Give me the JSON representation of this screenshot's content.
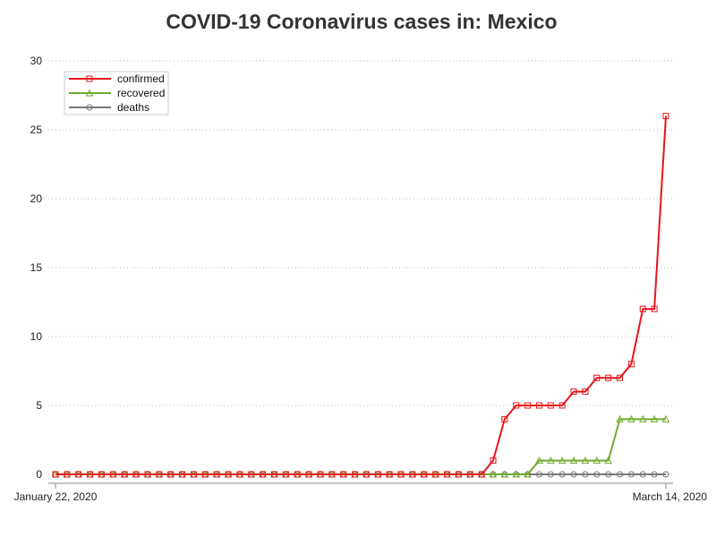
{
  "chart_data": {
    "type": "line",
    "title": "COVID-19 Coronavirus cases in: Mexico",
    "xlabel": "",
    "ylabel": "",
    "x_tick_labels": [
      "January 22, 2020",
      "March 14, 2020"
    ],
    "x_start": "2020-01-22",
    "x_end": "2020-03-14",
    "ylim": [
      0,
      30
    ],
    "y_ticks": [
      0,
      5,
      10,
      15,
      20,
      25,
      30
    ],
    "grid": "horizontal dotted",
    "legend_position": "top-left",
    "series": [
      {
        "name": "confirmed",
        "color": "#e8141b",
        "marker": "square",
        "values": [
          0,
          0,
          0,
          0,
          0,
          0,
          0,
          0,
          0,
          0,
          0,
          0,
          0,
          0,
          0,
          0,
          0,
          0,
          0,
          0,
          0,
          0,
          0,
          0,
          0,
          0,
          0,
          0,
          0,
          0,
          0,
          0,
          0,
          0,
          0,
          0,
          0,
          0,
          1,
          4,
          5,
          5,
          5,
          5,
          5,
          6,
          6,
          7,
          7,
          7,
          8,
          12,
          12,
          26
        ]
      },
      {
        "name": "recovered",
        "color": "#6fab2e",
        "marker": "triangle",
        "values": [
          0,
          0,
          0,
          0,
          0,
          0,
          0,
          0,
          0,
          0,
          0,
          0,
          0,
          0,
          0,
          0,
          0,
          0,
          0,
          0,
          0,
          0,
          0,
          0,
          0,
          0,
          0,
          0,
          0,
          0,
          0,
          0,
          0,
          0,
          0,
          0,
          0,
          0,
          0,
          0,
          0,
          0,
          1,
          1,
          1,
          1,
          1,
          1,
          1,
          4,
          4,
          4,
          4,
          4
        ]
      },
      {
        "name": "deaths",
        "color": "#777777",
        "marker": "circle",
        "values": [
          0,
          0,
          0,
          0,
          0,
          0,
          0,
          0,
          0,
          0,
          0,
          0,
          0,
          0,
          0,
          0,
          0,
          0,
          0,
          0,
          0,
          0,
          0,
          0,
          0,
          0,
          0,
          0,
          0,
          0,
          0,
          0,
          0,
          0,
          0,
          0,
          0,
          0,
          0,
          0,
          0,
          0,
          0,
          0,
          0,
          0,
          0,
          0,
          0,
          0,
          0,
          0,
          0,
          0
        ]
      }
    ]
  }
}
